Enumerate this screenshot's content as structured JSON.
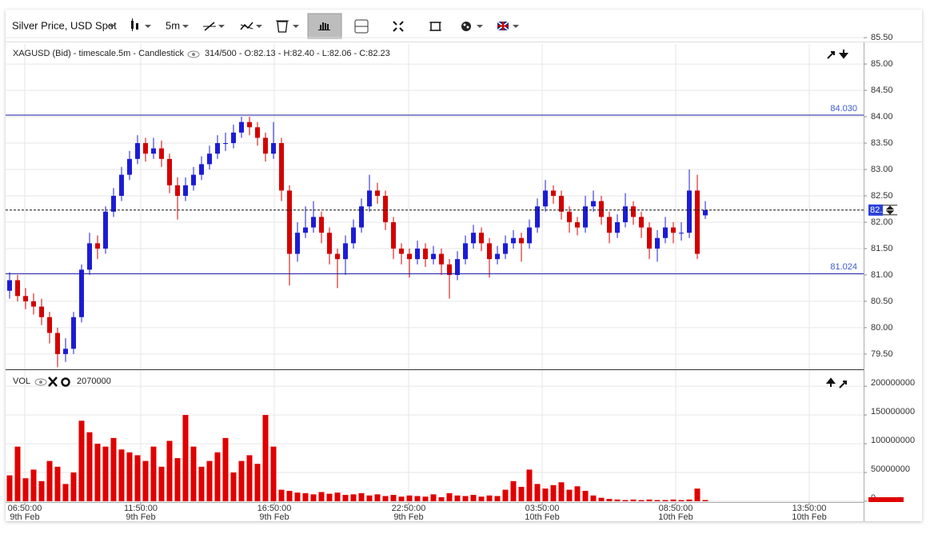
{
  "toolbar": {
    "symbol": "Silver Price, USD Spot",
    "interval": "5m"
  },
  "chart_data": [
    {
      "type": "candlestick",
      "title": "XAGUSD (Bid) - timescale.5m - Candlestick",
      "legend_text": "314/500 - O:82.13 - H:82.40 - L:82.06 - C:82.23",
      "open": [
        80.7,
        80.9,
        80.6,
        80.5,
        80.4,
        80.2,
        79.9,
        79.5,
        79.6,
        80.2,
        81.1,
        81.6,
        81.5,
        82.2,
        82.5,
        82.9,
        83.2,
        83.5,
        83.3,
        83.4,
        83.2,
        82.7,
        82.5,
        82.7,
        82.9,
        83.1,
        83.3,
        83.5,
        83.5,
        83.7,
        83.9,
        83.8,
        83.6,
        83.3,
        83.5,
        82.6,
        81.4,
        81.8,
        81.9,
        82.1,
        81.8,
        81.4,
        81.3,
        81.6,
        81.9,
        82.3,
        82.6,
        82.5,
        82.0,
        81.5,
        81.4,
        81.3,
        81.5,
        81.3,
        81.4,
        81.2,
        81.0,
        81.3,
        81.6,
        81.8,
        81.6,
        81.3,
        81.4,
        81.6,
        81.7,
        81.6,
        81.9,
        82.3,
        82.6,
        82.5,
        82.2,
        82.0,
        81.9,
        82.3,
        82.4,
        82.1,
        81.8,
        82.0,
        82.3,
        82.1,
        81.9,
        81.5,
        81.7,
        81.9,
        81.8,
        81.8,
        82.6,
        82.13
      ],
      "high": [
        81.05,
        81.0,
        80.75,
        80.65,
        80.55,
        80.3,
        80.0,
        79.8,
        80.3,
        81.2,
        81.8,
        81.75,
        82.3,
        82.65,
        83.05,
        83.35,
        83.65,
        83.6,
        83.6,
        83.55,
        83.3,
        82.85,
        82.85,
        83.05,
        83.25,
        83.45,
        83.65,
        83.7,
        83.85,
        84.0,
        84.0,
        83.9,
        83.7,
        83.9,
        83.6,
        82.7,
        82.0,
        82.3,
        82.4,
        82.2,
        81.9,
        81.5,
        81.75,
        82.05,
        82.45,
        82.9,
        82.75,
        82.6,
        82.1,
        81.6,
        81.5,
        81.65,
        81.6,
        81.55,
        81.5,
        81.3,
        81.45,
        81.75,
        81.95,
        81.9,
        81.7,
        81.55,
        81.75,
        81.85,
        81.8,
        82.05,
        82.45,
        82.8,
        82.7,
        82.6,
        82.3,
        82.1,
        82.5,
        82.6,
        82.5,
        82.2,
        82.15,
        82.55,
        82.4,
        82.2,
        82.0,
        81.85,
        82.1,
        82.0,
        82.0,
        83.0,
        82.9,
        82.4
      ],
      "low": [
        80.55,
        80.5,
        80.35,
        80.25,
        80.05,
        79.7,
        79.25,
        79.35,
        79.5,
        80.1,
        81.0,
        81.3,
        81.4,
        82.1,
        82.4,
        82.8,
        83.1,
        83.15,
        83.2,
        83.05,
        82.55,
        82.05,
        82.4,
        82.6,
        82.8,
        83.0,
        83.2,
        83.35,
        83.4,
        83.6,
        83.65,
        83.45,
        83.15,
        83.2,
        82.4,
        80.8,
        81.25,
        81.7,
        81.8,
        81.6,
        81.2,
        80.75,
        81.0,
        81.5,
        81.8,
        82.2,
        82.35,
        81.85,
        81.3,
        81.2,
        80.95,
        81.2,
        81.15,
        81.2,
        81.0,
        80.55,
        80.9,
        81.2,
        81.5,
        81.45,
        80.95,
        81.2,
        81.3,
        81.5,
        81.25,
        81.5,
        81.8,
        82.2,
        82.35,
        82.05,
        81.8,
        81.75,
        81.8,
        82.2,
        81.95,
        81.6,
        81.7,
        81.9,
        81.95,
        81.7,
        81.3,
        81.25,
        81.6,
        81.6,
        81.65,
        81.7,
        81.3,
        82.06
      ],
      "close": [
        80.9,
        80.6,
        80.5,
        80.4,
        80.2,
        79.9,
        79.5,
        79.6,
        80.2,
        81.1,
        81.6,
        81.5,
        82.2,
        82.5,
        82.9,
        83.2,
        83.5,
        83.3,
        83.4,
        83.2,
        82.7,
        82.5,
        82.7,
        82.9,
        83.1,
        83.3,
        83.5,
        83.5,
        83.7,
        83.9,
        83.8,
        83.6,
        83.3,
        83.5,
        82.6,
        81.4,
        81.8,
        81.9,
        82.1,
        81.8,
        81.4,
        81.3,
        81.6,
        81.9,
        82.3,
        82.6,
        82.5,
        82.0,
        81.5,
        81.4,
        81.3,
        81.5,
        81.3,
        81.4,
        81.2,
        81.0,
        81.3,
        81.6,
        81.8,
        81.6,
        81.3,
        81.4,
        81.6,
        81.7,
        81.6,
        81.9,
        82.3,
        82.6,
        82.5,
        82.2,
        82.0,
        81.9,
        82.3,
        82.4,
        82.1,
        81.8,
        82.0,
        82.3,
        82.1,
        81.9,
        81.5,
        81.7,
        81.9,
        81.8,
        81.8,
        82.6,
        81.4,
        82.23
      ],
      "up_color": "#1c1cd6",
      "down_color": "#d40000",
      "ylim": [
        79.21,
        85.38
      ],
      "yticks": [
        {
          "value": 79.5,
          "label": "79.50"
        },
        {
          "value": 80,
          "label": "80.00"
        },
        {
          "value": 80.5,
          "label": "80.50"
        },
        {
          "value": 81,
          "label": "81.00"
        },
        {
          "value": 81.5,
          "label": "81.50"
        },
        {
          "value": 82,
          "label": "82.00"
        },
        {
          "value": 82.5,
          "label": "82.50"
        },
        {
          "value": 83,
          "label": "83.00"
        },
        {
          "value": 83.5,
          "label": "83.50"
        },
        {
          "value": 84,
          "label": "84.00"
        },
        {
          "value": 84.5,
          "label": "84.50"
        },
        {
          "value": 85,
          "label": "85.00"
        },
        {
          "value": 85.5,
          "label": "85.50"
        }
      ],
      "hlines": [
        {
          "value": 84.03,
          "label": "84.030"
        },
        {
          "value": 81.024,
          "label": "81.024"
        }
      ],
      "hline_color": "#1a1aa8",
      "xlim": [
        0,
        107.3
      ],
      "xticks": [
        {
          "value": 2.4,
          "label": "06:50:00"
        },
        {
          "value": 16.9,
          "label": "11:50:00"
        },
        {
          "value": 33.6,
          "label": "16:50:00"
        },
        {
          "value": 50.4,
          "label": "22:50:00"
        },
        {
          "value": 67.1,
          "label": "03:50:00"
        },
        {
          "value": 83.8,
          "label": "08:50:00"
        },
        {
          "value": 100.5,
          "label": "13:50:00"
        }
      ],
      "xtick_dates": [
        "9th Feb",
        "9th Feb",
        "9th Feb",
        "9th Feb",
        "10th Feb",
        "10th Feb",
        "10th Feb"
      ],
      "grid": true
    },
    {
      "type": "bar",
      "title": "VOL",
      "values": [
        45000000,
        95000000,
        40000000,
        55000000,
        35000000,
        70000000,
        60000000,
        30000000,
        50000000,
        140000000,
        120000000,
        100000000,
        95000000,
        110000000,
        90000000,
        85000000,
        80000000,
        70000000,
        95000000,
        60000000,
        105000000,
        75000000,
        150000000,
        95000000,
        60000000,
        70000000,
        85000000,
        110000000,
        50000000,
        70000000,
        80000000,
        65000000,
        150000000,
        95000000,
        20000000,
        18000000,
        15000000,
        14000000,
        12000000,
        16000000,
        13000000,
        15000000,
        11000000,
        12000000,
        14000000,
        10000000,
        12000000,
        9000000,
        11000000,
        8000000,
        10000000,
        9000000,
        8000000,
        12000000,
        7000000,
        14000000,
        10000000,
        9000000,
        11000000,
        8000000,
        10000000,
        9000000,
        20000000,
        35000000,
        25000000,
        55000000,
        30000000,
        22000000,
        28000000,
        33000000,
        20000000,
        26000000,
        18000000,
        10000000,
        6000000,
        4000000,
        3000000,
        2000000,
        3000000,
        2000000,
        3000000,
        2000000,
        2000000,
        3000000,
        2000000,
        3000000,
        22000000,
        2070000
      ],
      "color": "#e00000",
      "ylim": [
        0,
        228000000
      ],
      "yticks": [
        0,
        50000000,
        100000000,
        150000000,
        200000000
      ],
      "grid": true
    }
  ]
}
